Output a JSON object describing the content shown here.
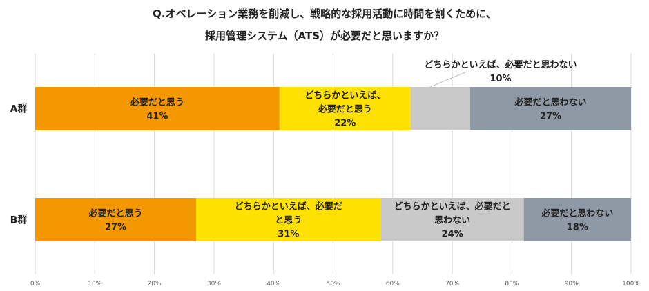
{
  "chart_data": {
    "type": "bar",
    "orientation": "horizontal",
    "stacked": true,
    "title_lines": [
      "Q.オペレーション業務を削減し、戦略的な採用活動に時間を割くために、",
      "採用管理システム（ATS）が必要だと思いますか？"
    ],
    "categories": [
      "A群",
      "B群"
    ],
    "series": [
      {
        "name": "必要だと思う",
        "color": "#f39800",
        "values": [
          41,
          27
        ]
      },
      {
        "name": "どちらかといえば、必要だと思う",
        "color": "#ffe100",
        "values": [
          22,
          31
        ]
      },
      {
        "name": "どちらかといえば、必要だと思わない",
        "color": "#c9c9c9",
        "values": [
          10,
          24
        ]
      },
      {
        "name": "必要だと思わない",
        "color": "#8f99a5",
        "values": [
          27,
          18
        ]
      }
    ],
    "segment_labels": [
      [
        {
          "lines": [
            "必要だと思う"
          ],
          "value": "41%"
        },
        {
          "lines": [
            "どちらかといえば、",
            "必要だと思う"
          ],
          "value": "22%"
        },
        {
          "lines": [
            "どちらかといえば、必要だと思わない"
          ],
          "value": "10%",
          "callout": true
        },
        {
          "lines": [
            "必要だと思わない"
          ],
          "value": "27%"
        }
      ],
      [
        {
          "lines": [
            "必要だと思う"
          ],
          "value": "27%"
        },
        {
          "lines": [
            "どちらかといえば、必要だ",
            "と思う"
          ],
          "value": "31%"
        },
        {
          "lines": [
            "どちらかといえば、必要だと",
            "思わない"
          ],
          "value": "24%"
        },
        {
          "lines": [
            "必要だと思わない"
          ],
          "value": "18%"
        }
      ]
    ],
    "x_ticks": [
      "0%",
      "10%",
      "20%",
      "30%",
      "40%",
      "50%",
      "60%",
      "70%",
      "80%",
      "90%",
      "100%"
    ],
    "xlim": [
      0,
      100
    ],
    "grid": true,
    "legend": "none"
  }
}
